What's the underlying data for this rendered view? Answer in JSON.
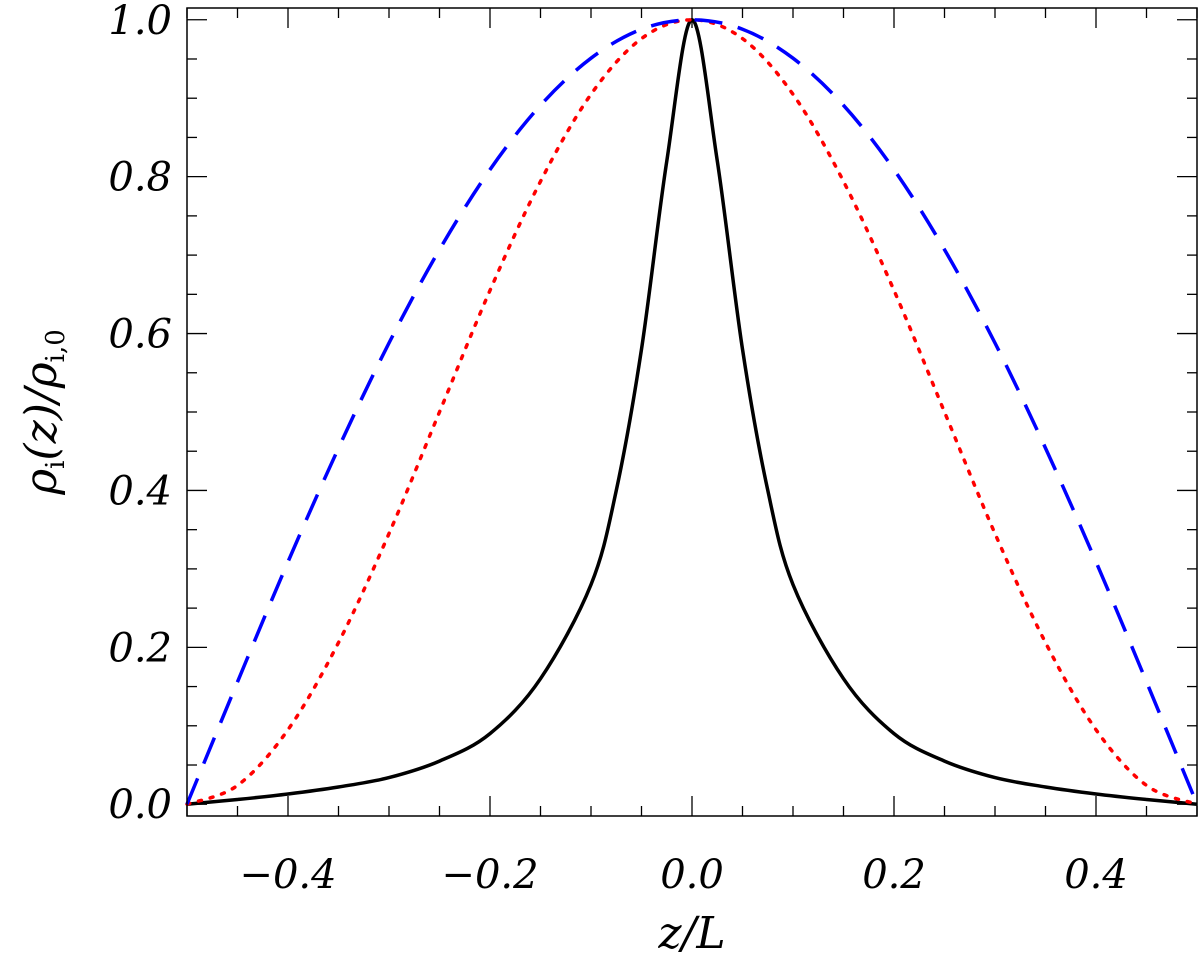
{
  "chart_data": {
    "type": "line",
    "xlabel": "z/L",
    "ylabel": "ρi(z)/ρi,0",
    "ylabel_parts": {
      "rho1": "ρ",
      "sub1": "i",
      "arg": "(z)/",
      "rho2": "ρ",
      "sub2": "i,0"
    },
    "xlim": [
      -0.5,
      0.5
    ],
    "ylim": [
      -0.015,
      1.015
    ],
    "x_ticks": [
      -0.4,
      -0.2,
      0.0,
      0.2,
      0.4
    ],
    "x_tick_labels": [
      "−0.4",
      "−0.2",
      "0.0",
      "0.2",
      "0.4"
    ],
    "y_ticks": [
      0.0,
      0.2,
      0.4,
      0.6,
      0.8,
      1.0
    ],
    "y_tick_labels": [
      "0.0",
      "0.2",
      "0.4",
      "0.6",
      "0.8",
      "1.0"
    ],
    "grid": false,
    "legend": "none",
    "series": [
      {
        "style": "solid",
        "color": "#000000",
        "x": [
          -0.5,
          -0.45,
          -0.4,
          -0.35,
          -0.3,
          -0.25,
          -0.2,
          -0.15,
          -0.1,
          -0.075,
          -0.05,
          -0.025,
          0.0,
          0.025,
          0.05,
          0.075,
          0.1,
          0.15,
          0.2,
          0.25,
          0.3,
          0.35,
          0.4,
          0.45,
          0.5
        ],
        "y": [
          0.0,
          0.006,
          0.013,
          0.022,
          0.034,
          0.055,
          0.09,
          0.16,
          0.28,
          0.4,
          0.58,
          0.82,
          1.0,
          0.82,
          0.58,
          0.4,
          0.28,
          0.16,
          0.09,
          0.055,
          0.034,
          0.022,
          0.013,
          0.006,
          0.0
        ]
      },
      {
        "style": "dotted",
        "color": "#ff0000",
        "x": [
          -0.5,
          -0.45,
          -0.4,
          -0.35,
          -0.3,
          -0.25,
          -0.2,
          -0.15,
          -0.1,
          -0.05,
          0.0,
          0.05,
          0.1,
          0.15,
          0.2,
          0.25,
          0.3,
          0.35,
          0.4,
          0.45,
          0.5
        ],
        "y": [
          0.0,
          0.024,
          0.095,
          0.206,
          0.345,
          0.5,
          0.655,
          0.794,
          0.905,
          0.976,
          1.0,
          0.976,
          0.905,
          0.794,
          0.655,
          0.5,
          0.345,
          0.206,
          0.095,
          0.024,
          0.0
        ]
      },
      {
        "style": "dashed",
        "color": "#0000ff",
        "x": [
          -0.5,
          -0.45,
          -0.4,
          -0.35,
          -0.3,
          -0.25,
          -0.2,
          -0.15,
          -0.1,
          -0.05,
          0.0,
          0.05,
          0.1,
          0.15,
          0.2,
          0.25,
          0.3,
          0.35,
          0.4,
          0.45,
          0.5
        ],
        "y": [
          0.0,
          0.156,
          0.309,
          0.454,
          0.588,
          0.707,
          0.809,
          0.891,
          0.951,
          0.988,
          1.0,
          0.988,
          0.951,
          0.891,
          0.809,
          0.707,
          0.588,
          0.454,
          0.309,
          0.156,
          0.0
        ]
      }
    ]
  }
}
